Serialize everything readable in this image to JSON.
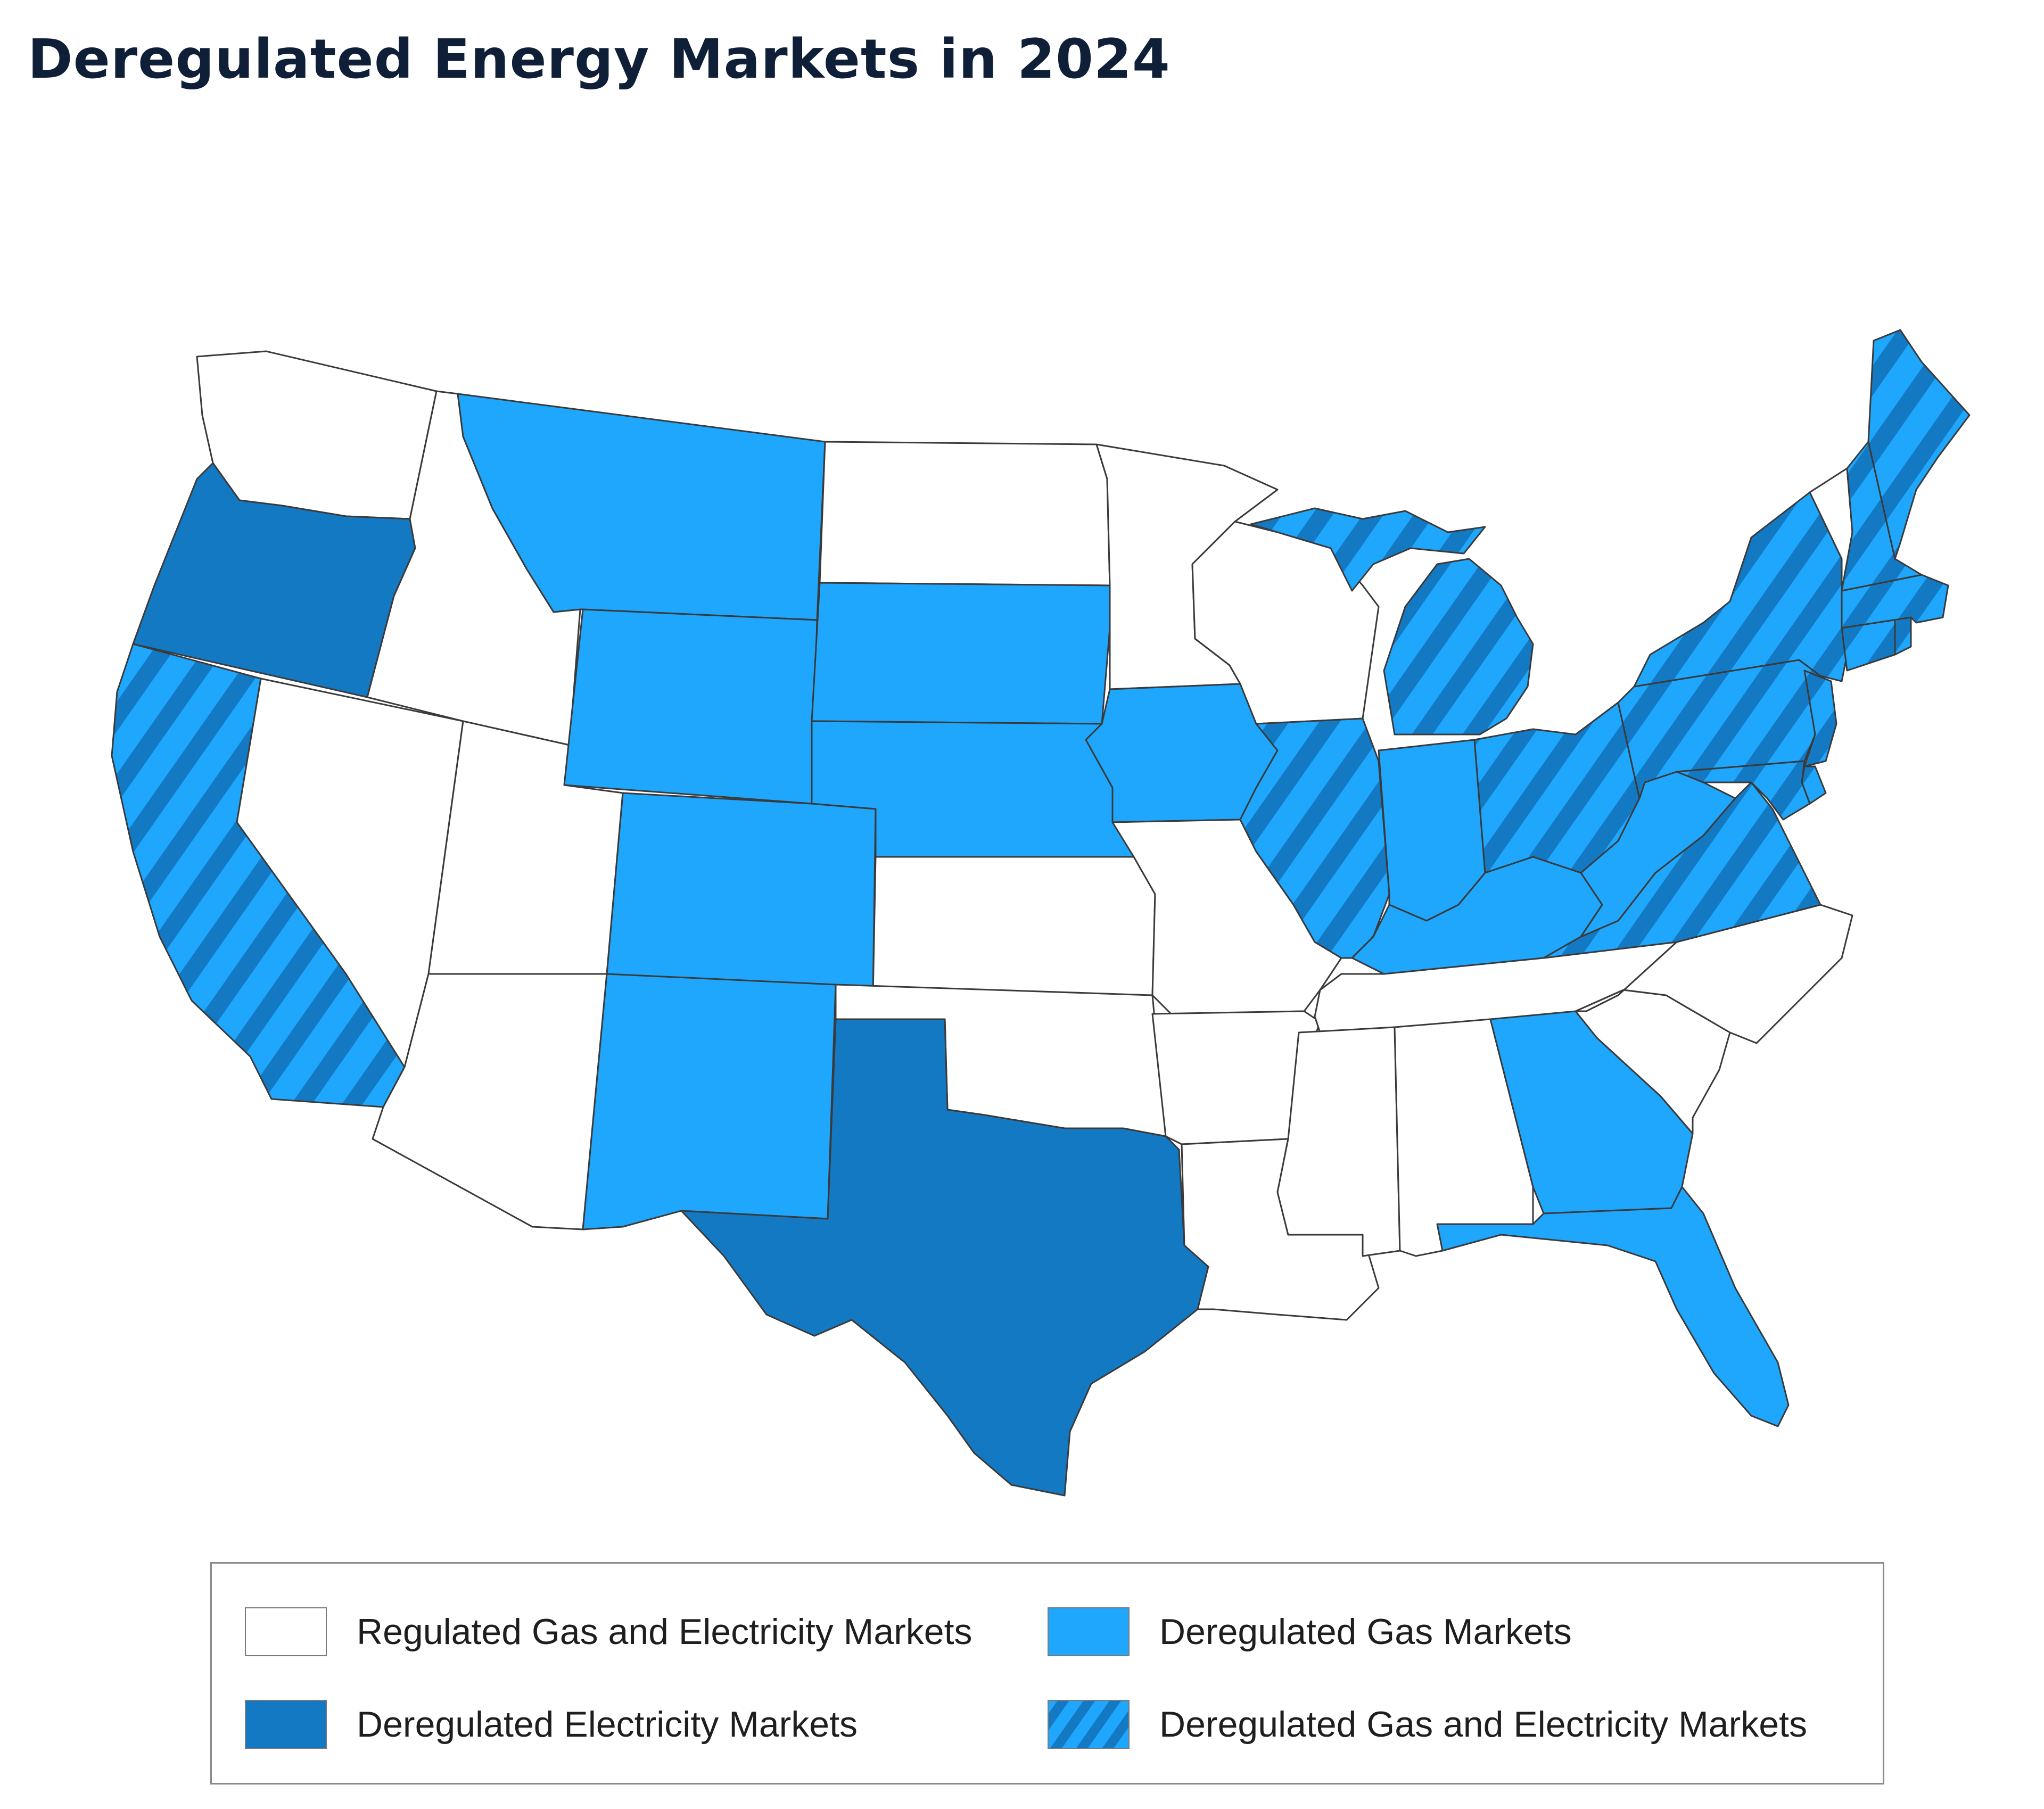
{
  "title": "Deregulated Energy Markets in 2024",
  "colors": {
    "regulated": "#ffffff",
    "gas": "#1ea7fd",
    "electricity": "#1479c3",
    "both_base": "#1ea7fd",
    "both_stripe": "#1479c3",
    "outline": "#3a3a3a"
  },
  "legend": {
    "items": [
      {
        "key": "regulated",
        "label": "Regulated Gas and Electricity Markets"
      },
      {
        "key": "gas",
        "label": "Deregulated Gas Markets"
      },
      {
        "key": "electricity",
        "label": "Deregulated Electricity Markets"
      },
      {
        "key": "both",
        "label": "Deregulated Gas and Electricity Markets"
      }
    ]
  },
  "states": {
    "WA": "regulated",
    "OR": "electricity",
    "CA": "both",
    "NV": "regulated",
    "ID": "regulated",
    "UT": "regulated",
    "AZ": "regulated",
    "MT": "gas",
    "WY": "gas",
    "CO": "gas",
    "NM": "gas",
    "ND": "regulated",
    "SD": "gas",
    "NE": "gas",
    "KS": "regulated",
    "OK": "regulated",
    "TX": "electricity",
    "MN": "regulated",
    "IA": "gas",
    "MO": "regulated",
    "AR": "regulated",
    "LA": "regulated",
    "WI": "regulated",
    "IL": "both",
    "MI": "both",
    "IN": "gas",
    "OH": "both",
    "KY": "gas",
    "TN": "regulated",
    "MS": "regulated",
    "AL": "regulated",
    "GA": "gas",
    "FL": "gas",
    "SC": "regulated",
    "NC": "regulated",
    "VA": "both",
    "WV": "gas",
    "PA": "both",
    "NY": "both",
    "NJ": "both",
    "DE": "both",
    "MD": "both",
    "CT": "both",
    "RI": "both",
    "MA": "both",
    "VT": "regulated",
    "NH": "both",
    "ME": "both"
  }
}
